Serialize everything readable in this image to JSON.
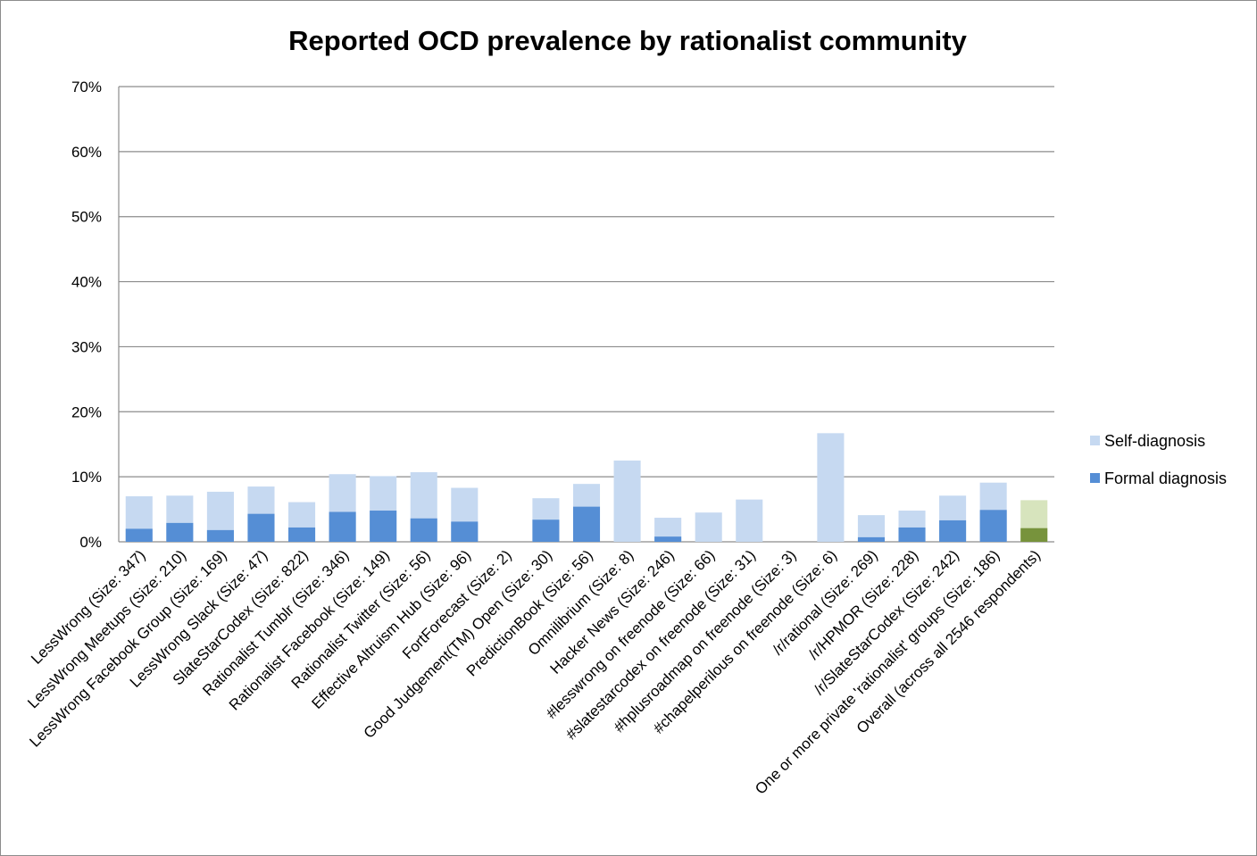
{
  "chart_data": {
    "type": "bar",
    "stacking": "overlapped",
    "title": "Reported OCD prevalence by rationalist community",
    "xlabel": "",
    "ylabel": "",
    "ylim": [
      0,
      70
    ],
    "y_ticks": [
      "0%",
      "10%",
      "20%",
      "30%",
      "40%",
      "50%",
      "60%",
      "70%"
    ],
    "grid": "horizontal",
    "legend_position": "right",
    "categories": [
      "LessWrong (Size: 347)",
      "LessWrong Meetups (Size: 210)",
      "LessWrong Facebook Group (Size: 169)",
      "LessWrong Slack (Size: 47)",
      "SlateStarCodex (Size: 822)",
      "Rationalist Tumblr (Size: 346)",
      "Rationalist Facebook (Size: 149)",
      "Rationalist Twitter (Size: 56)",
      "Effective Altruism Hub (Size: 96)",
      "FortForecast (Size: 2)",
      "Good Judgement(TM) Open  (Size: 30)",
      "PredictionBook (Size: 56)",
      "Omnilibrium (Size: 8)",
      "Hacker News (Size: 246)",
      "#lesswrong on freenode  (Size: 66)",
      "#slatestarcodex on freenode  (Size: 31)",
      "#hplusroadmap on freenode  (Size: 3)",
      "#chapelperilous on freenode (Size: 6)",
      "/r/rational (Size: 269)",
      "/r/HPMOR (Size: 228)",
      "/r/SlateStarCodex (Size: 242)",
      "One or more private 'rationalist' groups  (Size: 186)",
      "Overall (across all 2546 respondents)"
    ],
    "series": [
      {
        "name": "Self-diagnosis",
        "color": "#c6d9f1",
        "values": [
          7.0,
          7.1,
          7.7,
          8.5,
          6.1,
          10.4,
          10.1,
          10.7,
          8.3,
          0,
          6.7,
          8.9,
          12.5,
          3.7,
          4.5,
          6.5,
          0,
          16.7,
          4.1,
          4.8,
          7.1,
          9.1,
          6.4
        ]
      },
      {
        "name": "Formal diagnosis",
        "color": "#558ed5",
        "values": [
          2.0,
          2.9,
          1.8,
          4.3,
          2.2,
          4.6,
          4.8,
          3.6,
          3.1,
          0,
          3.4,
          5.4,
          0,
          0.8,
          0,
          0,
          0,
          0,
          0.7,
          2.2,
          3.3,
          4.9,
          2.1
        ]
      }
    ],
    "highlight": {
      "index": 22,
      "self_color": "#d7e4bd",
      "formal_color": "#77933c"
    }
  }
}
